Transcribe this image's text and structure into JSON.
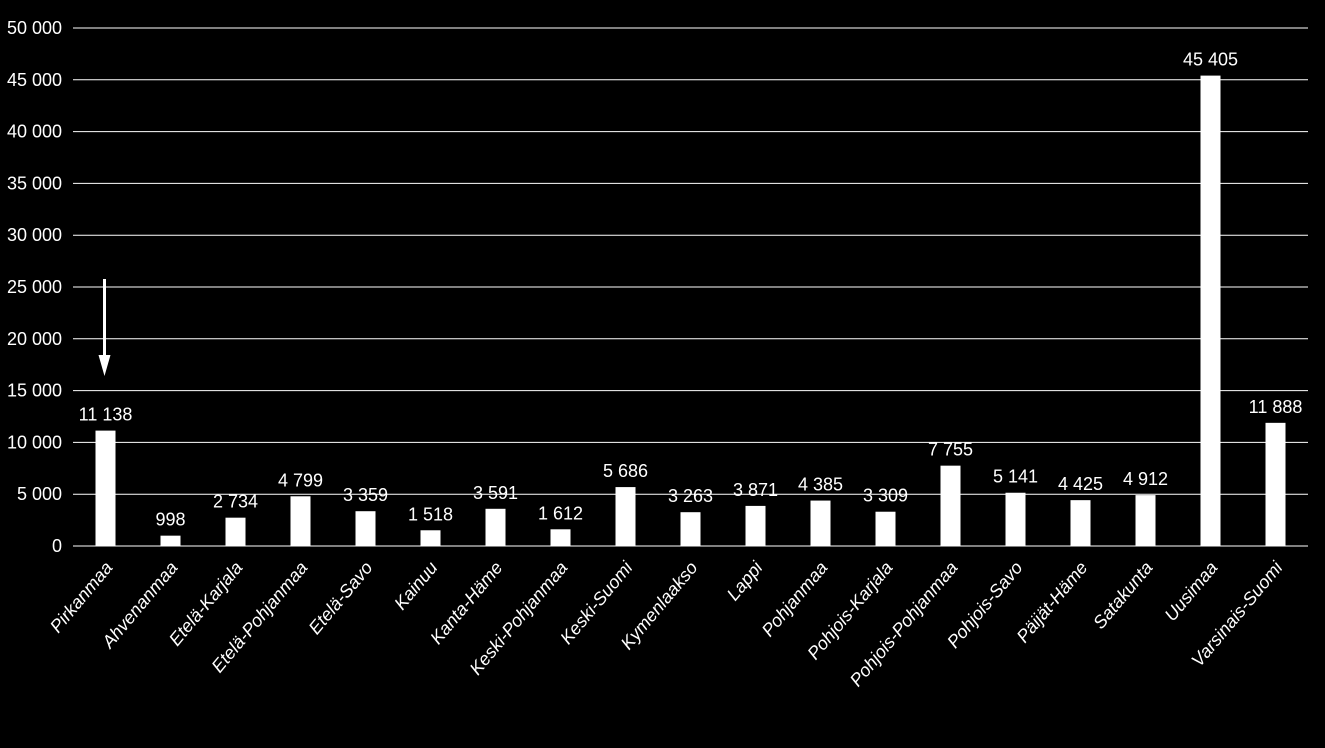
{
  "chart_data": {
    "type": "bar",
    "title": "",
    "xlabel": "",
    "ylabel": "",
    "ylim": [
      0,
      50000
    ],
    "yticks": [
      0,
      5000,
      10000,
      15000,
      20000,
      25000,
      30000,
      35000,
      40000,
      45000,
      50000
    ],
    "ytick_labels": [
      "0",
      "5 000",
      "10 000",
      "15 000",
      "20 000",
      "25 000",
      "30 000",
      "35 000",
      "40 000",
      "45 000",
      "50 000"
    ],
    "grid": true,
    "categories": [
      "Pirkanmaa",
      "Ahvenanmaa",
      "Etelä-Karjala",
      "Etelä-Pohjanmaa",
      "Etelä-Savo",
      "Kainuu",
      "Kanta-Häme",
      "Keski-Pohjanmaa",
      "Keski-Suomi",
      "Kymenlaakso",
      "Lappi",
      "Pohjanmaa",
      "Pohjois-Karjala",
      "Pohjois-Pohjanmaa",
      "Pohjois-Savo",
      "Päijät-Häme",
      "Satakunta",
      "Uusimaa",
      "Varsinais-Suomi"
    ],
    "values": [
      11138,
      998,
      2734,
      4799,
      3359,
      1518,
      3591,
      1612,
      5686,
      3263,
      3871,
      4385,
      3309,
      7755,
      5141,
      4425,
      4912,
      45405,
      11888
    ],
    "value_labels": [
      "11 138",
      "998",
      "2 734",
      "4 799",
      "3 359",
      "1 518",
      "3 591",
      "1 612",
      "5 686",
      "3 263",
      "3 871",
      "4 385",
      "3 309",
      "7 755",
      "5 141",
      "4 425",
      "4 912",
      "45 405",
      "11 888"
    ],
    "highlight": {
      "category": "Pirkanmaa",
      "marker": "down-arrow-icon"
    },
    "colors": {
      "background": "#000000",
      "bars": "#ffffff",
      "text": "#ffffff",
      "grid": "#ffffff"
    }
  }
}
